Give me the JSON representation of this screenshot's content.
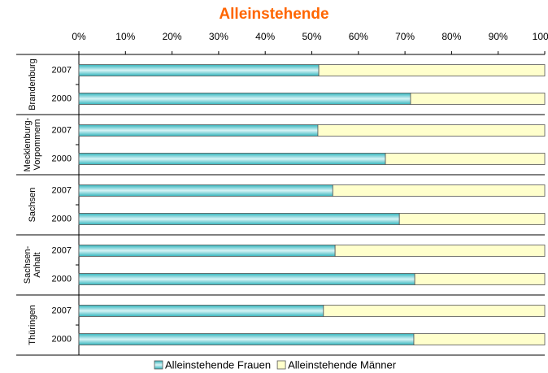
{
  "chart_data": {
    "type": "bar",
    "orientation": "horizontal",
    "stacked": true,
    "title": "Alleinstehende",
    "groups": [
      "Brandenburg",
      "Mecklenburg-\nVorpommern",
      "Sachsen",
      "Sachsen-\nAnhalt",
      "Thüringen"
    ],
    "categories": [
      "2007",
      "2000",
      "2007",
      "2000",
      "2007",
      "2000",
      "2007",
      "2000",
      "2007",
      "2000"
    ],
    "series": [
      {
        "name": "Alleinstehende Frauen",
        "color": "#33b5bd",
        "values": [
          51.5,
          71.2,
          51.3,
          65.8,
          54.5,
          68.8,
          55,
          72.1,
          52.5,
          71.9
        ]
      },
      {
        "name": "Alleinstehende Männer",
        "color": "#ffffcc",
        "values": [
          48.5,
          28.8,
          48.7,
          34.2,
          45.5,
          31.2,
          45,
          27.9,
          47.5,
          28.1
        ]
      }
    ],
    "xlim": [
      0,
      100
    ],
    "xticks": [
      {
        "value": 0,
        "label": "0%"
      },
      {
        "value": 10,
        "label": "10%"
      },
      {
        "value": 20,
        "label": "20%"
      },
      {
        "value": 30,
        "label": "30%"
      },
      {
        "value": 40,
        "label": "40%"
      },
      {
        "value": 50,
        "label": "50%"
      },
      {
        "value": 60,
        "label": "60%"
      },
      {
        "value": 70,
        "label": "70%"
      },
      {
        "value": 80,
        "label": "80%"
      },
      {
        "value": 90,
        "label": "90%"
      },
      {
        "value": 100,
        "label": "100%"
      }
    ],
    "legend": "bottom"
  }
}
